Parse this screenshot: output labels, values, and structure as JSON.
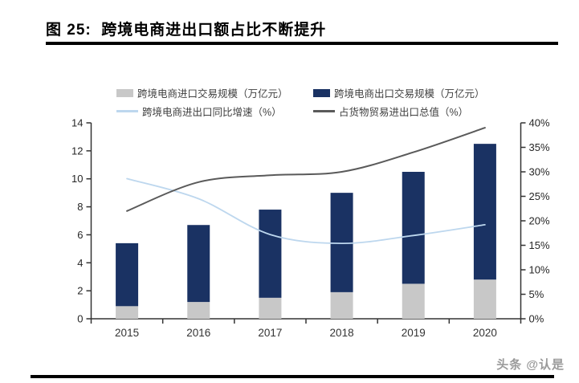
{
  "header": {
    "title": "图 25:  跨境电商进出口额占比不断提升"
  },
  "watermark": "头条 @认是",
  "colors": {
    "import_bar": "#c8c8c8",
    "export_bar": "#1a3263",
    "growth_line": "#bdd7ee",
    "share_line": "#5a5a5a",
    "axis": "#333333",
    "rule": "#000000"
  },
  "chart_data": {
    "type": "bar+line combo, stacked bars on left axis, lines on right axis",
    "categories": [
      "2015",
      "2016",
      "2017",
      "2018",
      "2019",
      "2020"
    ],
    "left_axis": {
      "min": 0,
      "max": 14,
      "step": 2,
      "tick_labels": [
        "0",
        "2",
        "4",
        "6",
        "8",
        "10",
        "12",
        "14"
      ]
    },
    "right_axis": {
      "min": 0,
      "max": 40,
      "step": 5,
      "tick_labels": [
        "0%",
        "5%",
        "10%",
        "15%",
        "20%",
        "25%",
        "30%",
        "35%",
        "40%"
      ]
    },
    "grid": false,
    "legend_position": "top",
    "series": [
      {
        "name": "跨境电商进口交易规模（万亿元）",
        "type": "bar",
        "axis": "left",
        "stacked": true,
        "colorKey": "import_bar",
        "values": [
          0.9,
          1.2,
          1.5,
          1.9,
          2.5,
          2.8
        ]
      },
      {
        "name": "跨境电商出口交易规模（万亿元）",
        "type": "bar",
        "axis": "left",
        "stacked": true,
        "colorKey": "export_bar",
        "values": [
          4.5,
          5.5,
          6.3,
          7.1,
          8.0,
          9.7
        ],
        "stacked_totals": [
          5.4,
          6.7,
          7.8,
          9.0,
          10.5,
          12.5
        ]
      },
      {
        "name": "跨境电商进出口同比增速（%）",
        "type": "line",
        "axis": "right",
        "colorKey": "growth_line",
        "values": [
          28.6,
          24.5,
          17.2,
          15.4,
          17.0,
          19.2
        ]
      },
      {
        "name": "占货物贸易进出口总值（%）",
        "type": "line",
        "axis": "right",
        "colorKey": "share_line",
        "values": [
          22.0,
          27.9,
          29.3,
          30.0,
          34.0,
          39.0
        ]
      }
    ]
  }
}
